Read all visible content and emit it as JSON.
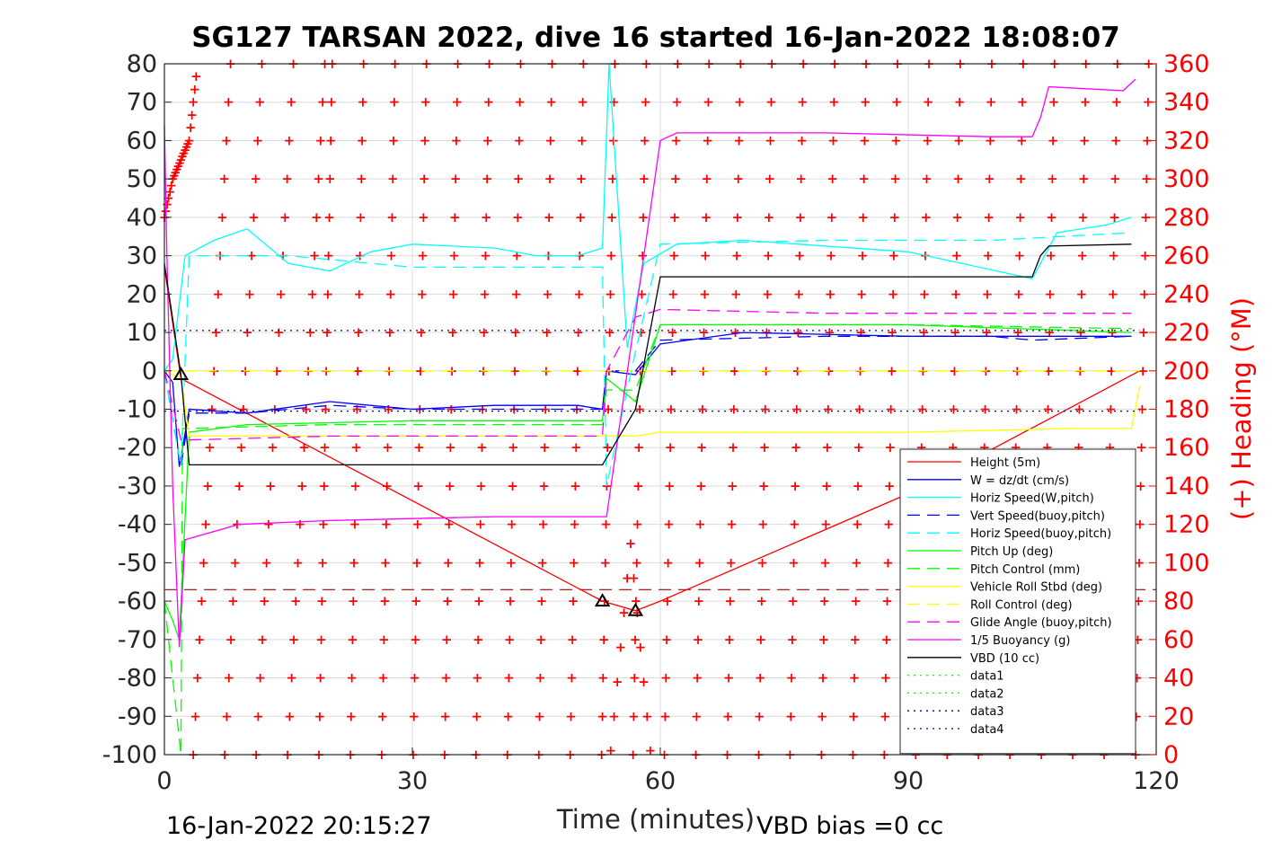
{
  "chart_data": {
    "type": "line",
    "title": "SG127 TARSAN 2022, dive 16 started 16-Jan-2022 18:08:07",
    "xlabel": "Time (minutes)",
    "ylabel_right": "(+) Heading (°M)",
    "xlim": [
      0,
      120
    ],
    "ylim": [
      -100,
      80
    ],
    "ylim_right": [
      0,
      360
    ],
    "xticks": [
      "0",
      "30",
      "60",
      "90",
      "120"
    ],
    "yticks": [
      "80",
      "70",
      "60",
      "50",
      "40",
      "30",
      "20",
      "10",
      "0",
      "-10",
      "-20",
      "-30",
      "-40",
      "-50",
      "-60",
      "-70",
      "-80",
      "-90",
      "-100"
    ],
    "yticks_right": [
      "360",
      "340",
      "320",
      "300",
      "280",
      "260",
      "240",
      "220",
      "200",
      "180",
      "160",
      "140",
      "120",
      "100",
      "80",
      "60",
      "40",
      "20",
      "0"
    ],
    "grid": true,
    "legend_position": "bottom-right",
    "footer_left": "16-Jan-2022 20:15:27",
    "footer_right": "VBD bias =0 cc",
    "colors": {
      "height": "#ff0000",
      "w": "#0000ff",
      "horiz": "#00ffff",
      "pitch": "#00ff00",
      "roll": "#ffff00",
      "glide": "#ff00ff",
      "buoy": "#ff00ff",
      "vbd": "#000000",
      "heading": "#ff0000"
    },
    "series": [
      {
        "name": "Height (5m)",
        "color": "#ff0000",
        "style": "solid",
        "x": [
          0,
          2,
          53,
          57,
          60,
          90,
          118
        ],
        "y": [
          27,
          -2,
          -60,
          -62.5,
          -60,
          -32,
          0
        ]
      },
      {
        "name": "W = dz/dt (cm/s)",
        "color": "#0000ff",
        "style": "solid",
        "x": [
          0,
          1,
          1.8,
          3,
          10,
          20,
          30,
          40,
          50,
          53,
          53.5,
          57,
          60,
          70,
          90,
          105,
          117
        ],
        "y": [
          0,
          -3,
          -25,
          -10,
          -11,
          -8,
          -10,
          -9,
          -9,
          -10,
          0,
          -1,
          7,
          10,
          9,
          9,
          9
        ]
      },
      {
        "name": "Horiz Speed(W,pitch)",
        "color": "#00ffff",
        "style": "solid",
        "x": [
          0,
          1,
          2.5,
          6,
          10,
          15,
          20,
          25,
          30,
          40,
          45,
          50,
          53,
          53.8,
          56,
          58,
          62,
          70,
          90,
          105,
          108,
          114,
          117
        ],
        "y": [
          0,
          3,
          30,
          34,
          37,
          28,
          26,
          31,
          33,
          32,
          30,
          30,
          32,
          80,
          6,
          28,
          33,
          34,
          31,
          24,
          36,
          38,
          40
        ]
      },
      {
        "name": "Vert Speed(buoy,pitch)",
        "color": "#0000ff",
        "style": "dashed",
        "x": [
          0,
          2,
          3,
          10,
          20,
          30,
          40,
          53,
          53.5,
          57,
          60,
          80,
          100,
          105,
          117
        ],
        "y": [
          0,
          -25,
          -11,
          -11,
          -9,
          -10,
          -10,
          -10,
          0,
          0,
          8,
          9,
          9,
          8,
          9
        ]
      },
      {
        "name": "Horiz Speed(buoy,pitch)",
        "color": "#00ffff",
        "style": "dashed",
        "x": [
          0,
          2,
          3,
          15,
          30,
          45,
          53,
          53.5,
          57,
          60,
          80,
          100,
          117
        ],
        "y": [
          0,
          -25,
          30,
          30,
          27,
          27,
          27,
          -30,
          5,
          33,
          34,
          34,
          36
        ]
      },
      {
        "name": "Pitch Up (deg)",
        "color": "#00ff00",
        "style": "solid",
        "x": [
          0,
          1,
          1.8,
          3,
          10,
          30,
          53,
          53.5,
          57,
          60,
          90,
          117
        ],
        "y": [
          -60,
          -65,
          -70,
          -16,
          -14,
          -13,
          -13,
          -2,
          -8,
          12,
          12,
          10
        ]
      },
      {
        "name": "Pitch Control (mm)",
        "color": "#00ff00",
        "style": "dashed",
        "x": [
          0,
          2,
          2.2,
          3,
          20,
          53,
          53.5,
          57,
          60,
          90,
          117
        ],
        "y": [
          -60,
          -100,
          -15,
          -15,
          -14,
          -14,
          -5,
          -5,
          12,
          12,
          11
        ]
      },
      {
        "name": "Vehicle Roll Stbd (deg)",
        "color": "#ffff00",
        "style": "solid",
        "x": [
          0,
          2,
          3,
          20,
          53,
          57,
          60,
          90,
          110,
          117,
          118
        ],
        "y": [
          0,
          -2,
          -17,
          -17,
          -17,
          -17,
          -16,
          -16,
          -15,
          -15,
          -4
        ]
      },
      {
        "name": "Roll Control (deg)",
        "color": "#ffff00",
        "style": "dashed",
        "x": [
          0,
          118
        ],
        "y": [
          0,
          0
        ]
      },
      {
        "name": "Glide Angle (buoy,pitch)",
        "color": "#ff00ff",
        "style": "dashed",
        "x": [
          0,
          2,
          3,
          20,
          53,
          53.5,
          57,
          60,
          80,
          117
        ],
        "y": [
          0,
          -18,
          -18,
          -17,
          -17,
          0,
          14,
          16,
          15,
          15
        ]
      },
      {
        "name": "1/5 Buoyancy (g)",
        "color": "#ff00ff",
        "style": "solid",
        "x": [
          0,
          0.3,
          1,
          1.8,
          2.5,
          9,
          20,
          40,
          53,
          53.5,
          60,
          62,
          80,
          100,
          105,
          106,
          107,
          116,
          117.5
        ],
        "y": [
          64,
          30,
          -30,
          -72,
          -44,
          -40,
          -39,
          -38,
          -38,
          -38,
          60,
          62,
          62,
          61,
          61,
          66,
          74,
          73,
          76
        ]
      },
      {
        "name": "VBD (10 cc)",
        "color": "#000000",
        "style": "solid",
        "x": [
          0,
          2,
          3,
          53,
          57,
          60,
          105,
          106,
          107,
          117
        ],
        "y": [
          28,
          -1,
          -24.5,
          -24.5,
          -10,
          24.5,
          24.5,
          30,
          32.5,
          33
        ]
      },
      {
        "name": "data1",
        "color": "#00ff00",
        "style": "dotted",
        "x": [],
        "y": []
      },
      {
        "name": "data2",
        "color": "#00ff00",
        "style": "dotted",
        "x": [],
        "y": []
      },
      {
        "name": "data3",
        "color": "#000080",
        "style": "dotted",
        "x": [
          0,
          118
        ],
        "y": [
          10.5,
          10.5
        ]
      },
      {
        "name": "data4",
        "color": "#000080",
        "style": "dotted",
        "x": [
          0,
          118
        ],
        "y": [
          -10.5,
          -10.5
        ]
      }
    ],
    "reference_lines": [
      {
        "color": "#aa0000",
        "style": "dashed",
        "y": -57
      }
    ],
    "heading_markers": {
      "color": "#ff0000",
      "marker": "+",
      "early_segment": {
        "x": [
          0,
          1,
          2,
          3,
          4
        ],
        "y_right": [
          280,
          300,
          310,
          320,
          360
        ]
      },
      "sweep_period_minutes": 3.8,
      "sweep_offset_minutes": 3.5
    },
    "event_markers": [
      {
        "marker": "triangle",
        "x": 2,
        "y": -1
      },
      {
        "marker": "triangle",
        "x": 53,
        "y": -60
      },
      {
        "marker": "triangle",
        "x": 57,
        "y": -62.5
      }
    ]
  }
}
